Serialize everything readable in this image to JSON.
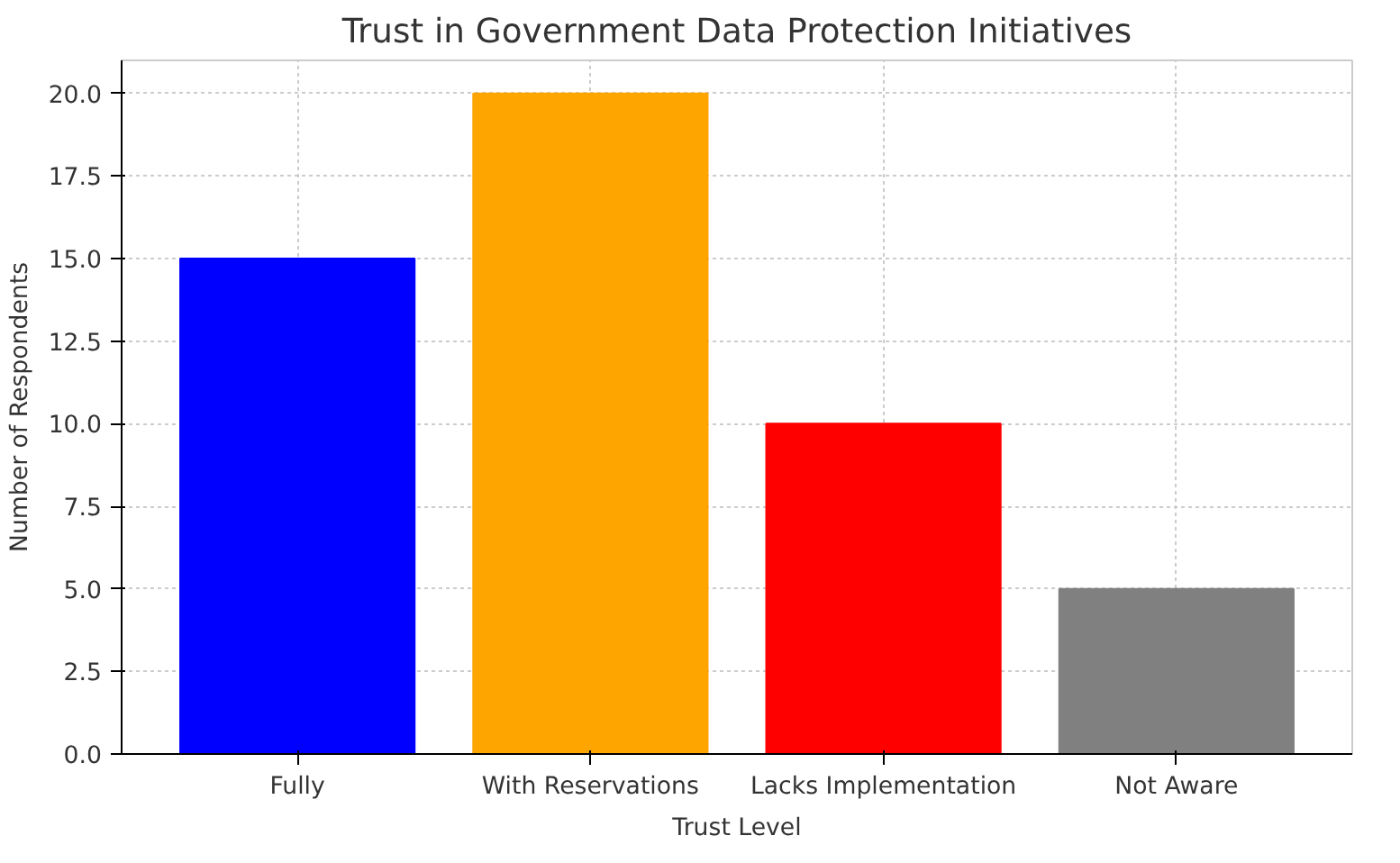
{
  "chart_data": {
    "type": "bar",
    "title": "Trust in Government Data Protection Initiatives",
    "xlabel": "Trust Level",
    "ylabel": "Number of Respondents",
    "categories": [
      "Fully",
      "With Reservations",
      "Lacks Implementation",
      "Not Aware"
    ],
    "values": [
      15,
      20,
      10,
      5
    ],
    "colors": [
      "#0000ff",
      "#ffa500",
      "#ff0000",
      "#808080"
    ],
    "ylim": [
      0,
      21
    ],
    "yticks": [
      {
        "value": 0,
        "label": "0.0"
      },
      {
        "value": 2.5,
        "label": "2.5"
      },
      {
        "value": 5,
        "label": "5.0"
      },
      {
        "value": 7.5,
        "label": "7.5"
      },
      {
        "value": 10,
        "label": "10.0"
      },
      {
        "value": 12.5,
        "label": "12.5"
      },
      {
        "value": 15,
        "label": "15.0"
      },
      {
        "value": 17.5,
        "label": "17.5"
      },
      {
        "value": 20,
        "label": "20.0"
      }
    ],
    "grid": true
  }
}
